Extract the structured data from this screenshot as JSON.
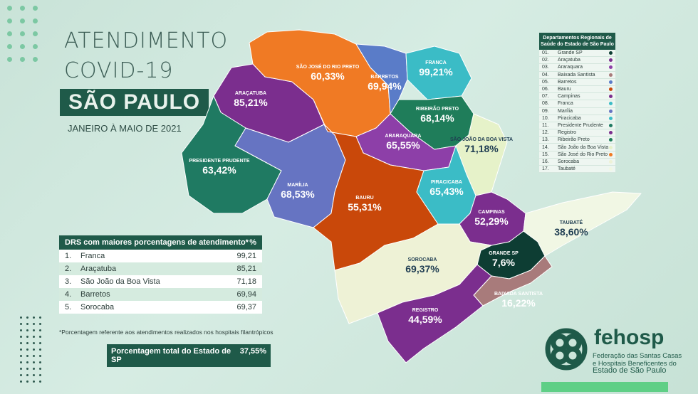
{
  "header": {
    "title_line1": "ATENDIMENTO",
    "title_line2": "COVID-19",
    "state": "SÃO PAULO",
    "period": "JANEIRO À MAIO DE 2021"
  },
  "regions": [
    {
      "label": "ARAÇATUBA",
      "value": "85,21%",
      "color": "#7b2e8e"
    },
    {
      "label": "SÃO JOSÉ DO RIO PRETO",
      "value": "60,33%",
      "color": "#f07a24"
    },
    {
      "label": "BARRETOS",
      "value": "69,94%",
      "color": "#5a7cc8"
    },
    {
      "label": "FRANCA",
      "value": "99,21%",
      "color": "#3bbcc6"
    },
    {
      "label": "RIBEIRÃO PRETO",
      "value": "68,14%",
      "color": "#1f7d5a"
    },
    {
      "label": "ARARAQUARA",
      "value": "65,55%",
      "color": "#8d3fa8"
    },
    {
      "label": "SÃO JOÃO DA BOA VISTA",
      "value": "71,18%",
      "color": "#e6f2c9"
    },
    {
      "label": "PRESIDENTE PRUDENTE",
      "value": "63,42%",
      "color": "#1f7a62"
    },
    {
      "label": "MARÍLIA",
      "value": "68,53%",
      "color": "#6674c2"
    },
    {
      "label": "BAURU",
      "value": "55,31%",
      "color": "#c9480a"
    },
    {
      "label": "PIRACICABA",
      "value": "65,43%",
      "color": "#3bbcc6"
    },
    {
      "label": "CAMPINAS",
      "value": "52,29%",
      "color": "#7b2e8e"
    },
    {
      "label": "TAUBATÉ",
      "value": "38,60%",
      "color": "#f1f7e4"
    },
    {
      "label": "GRANDE SP",
      "value": "7,6%",
      "color": "#0d3d33"
    },
    {
      "label": "SOROCABA",
      "value": "69,37%",
      "color": "#eef2d6"
    },
    {
      "label": "BAIXADA SANTISTA",
      "value": "16,22%",
      "color": "#a87b7b"
    },
    {
      "label": "REGISTRO",
      "value": "44,59%",
      "color": "#7b2e8e"
    }
  ],
  "legend": {
    "title": "Departamentos Regionais de Saúde do Estado de São Paulo",
    "items": [
      {
        "num": "01.",
        "name": "Grande SP",
        "color": "#0d3d33"
      },
      {
        "num": "02.",
        "name": "Araçatuba",
        "color": "#7b2e8e"
      },
      {
        "num": "03.",
        "name": "Araraquara",
        "color": "#8d3fa8"
      },
      {
        "num": "04.",
        "name": "Baixada Santista",
        "color": "#a87b7b"
      },
      {
        "num": "05.",
        "name": "Barretos",
        "color": "#5a7cc8"
      },
      {
        "num": "06.",
        "name": "Bauru",
        "color": "#c9480a"
      },
      {
        "num": "07.",
        "name": "Campinas",
        "color": "#7b2e8e"
      },
      {
        "num": "08.",
        "name": "Franca",
        "color": "#3bbcc6"
      },
      {
        "num": "09.",
        "name": "Marília",
        "color": "#6674c2"
      },
      {
        "num": "10.",
        "name": "Piracicaba",
        "color": "#3bbcc6"
      },
      {
        "num": "11.",
        "name": "Presidente Prudente",
        "color": "#1f7a62"
      },
      {
        "num": "12.",
        "name": "Registro",
        "color": "#7b2e8e"
      },
      {
        "num": "13.",
        "name": "Ribeirão Preto",
        "color": "#1f7d5a"
      },
      {
        "num": "14.",
        "name": "São João da Boa Vista",
        "color": "#e6f2c9"
      },
      {
        "num": "15.",
        "name": "São José do Rio Preto",
        "color": "#f07a24"
      },
      {
        "num": "16.",
        "name": "Sorocaba",
        "color": "#eef2d6"
      },
      {
        "num": "17.",
        "name": "Taubaté",
        "color": "#f1f7e4"
      }
    ]
  },
  "ranking": {
    "header_label": "DRS com maiores porcentagens de atendimento*",
    "header_pct": "%",
    "rows": [
      {
        "pos": "1.",
        "name": "Franca",
        "value": "99,21"
      },
      {
        "pos": "2.",
        "name": "Araçatuba",
        "value": "85,21"
      },
      {
        "pos": "3.",
        "name": "São João da Boa Vista",
        "value": "71,18"
      },
      {
        "pos": "4.",
        "name": "Barretos",
        "value": "69,94"
      },
      {
        "pos": "5.",
        "name": "Sorocaba",
        "value": "69,37"
      }
    ],
    "footnote": "*Porcentagem referente aos atendimentos realizados nos hospitais filantrópicos"
  },
  "total": {
    "label": "Porcentagem total do Estado de SP",
    "value": "37,55%"
  },
  "logo": {
    "name": "fehosp",
    "tagline1": "Federação das Santas Casas",
    "tagline2": "e Hospitais Beneficentes do",
    "tagline3": "Estado de São Paulo",
    "icon": "chain-link-logo"
  }
}
